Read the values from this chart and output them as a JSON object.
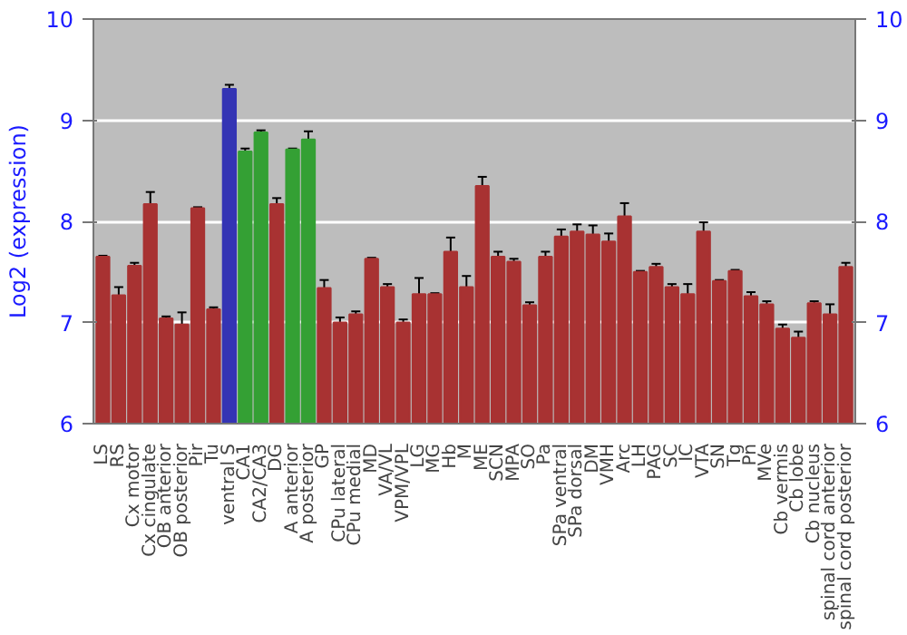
{
  "chart_data": {
    "type": "bar",
    "ylabel": "Log2 (expression)",
    "categories": [
      "LS",
      "RS",
      "Cx motor",
      "Cx cingulate",
      "OB anterior",
      "OB posterior",
      "Pir",
      "Tu",
      "ventral S",
      "CA1",
      "CA2/CA3",
      "DG",
      "A anterior",
      "A posterior",
      "GP",
      "CPu lateral",
      "CPu medial",
      "MD",
      "VA/VL",
      "VPM/VPL",
      "LG",
      "MG",
      "Hb",
      "M",
      "ME",
      "SCN",
      "MPA",
      "SO",
      "Pa",
      "SPa ventral",
      "SPa dorsal",
      "DM",
      "VMH",
      "Arc",
      "LH",
      "PAG",
      "SC",
      "IC",
      "VTA",
      "SN",
      "Tg",
      "Pn",
      "MVe",
      "Cb vermis",
      "Cb lobe",
      "Cb nucleus",
      "spinal cord anterior",
      "spinal cord posterior"
    ],
    "values": [
      7.65,
      7.27,
      7.56,
      8.17,
      7.04,
      6.98,
      8.13,
      7.13,
      9.31,
      8.69,
      8.88,
      8.17,
      8.71,
      8.81,
      7.34,
      7.0,
      7.08,
      7.63,
      7.35,
      7.0,
      7.28,
      7.28,
      7.7,
      7.35,
      8.35,
      7.65,
      7.6,
      7.17,
      7.65,
      7.85,
      7.9,
      7.87,
      7.8,
      8.05,
      7.5,
      7.55,
      7.35,
      7.28,
      7.9,
      7.41,
      7.51,
      7.26,
      7.18,
      6.94,
      6.85,
      7.19,
      7.08,
      7.55
    ],
    "errors": [
      0.01,
      0.08,
      0.03,
      0.12,
      0.02,
      0.12,
      0.01,
      0.02,
      0.04,
      0.03,
      0.02,
      0.06,
      0.01,
      0.08,
      0.08,
      0.05,
      0.03,
      0.01,
      0.03,
      0.03,
      0.16,
      0.01,
      0.14,
      0.11,
      0.09,
      0.05,
      0.03,
      0.03,
      0.05,
      0.07,
      0.07,
      0.09,
      0.08,
      0.13,
      0.01,
      0.03,
      0.03,
      0.1,
      0.09,
      0.01,
      0.01,
      0.04,
      0.03,
      0.04,
      0.06,
      0.02,
      0.1,
      0.04
    ],
    "colors": [
      "#a83232",
      "#a83232",
      "#a83232",
      "#a83232",
      "#a83232",
      "#a83232",
      "#a83232",
      "#a83232",
      "#3434b4",
      "#34a034",
      "#34a034",
      "#a83232",
      "#34a034",
      "#34a034",
      "#a83232",
      "#a83232",
      "#a83232",
      "#a83232",
      "#a83232",
      "#a83232",
      "#a83232",
      "#a83232",
      "#a83232",
      "#a83232",
      "#a83232",
      "#a83232",
      "#a83232",
      "#a83232",
      "#a83232",
      "#a83232",
      "#a83232",
      "#a83232",
      "#a83232",
      "#a83232",
      "#a83232",
      "#a83232",
      "#a83232",
      "#a83232",
      "#a83232",
      "#a83232",
      "#a83232",
      "#a83232",
      "#a83232",
      "#a83232",
      "#a83232",
      "#a83232",
      "#a83232",
      "#a83232"
    ],
    "ylim": [
      6,
      10
    ],
    "yticks": [
      6,
      7,
      8,
      9,
      10
    ],
    "y2lim": [
      6,
      10
    ],
    "y2ticks": [
      6,
      7,
      8,
      9,
      10
    ],
    "grid": "y"
  }
}
